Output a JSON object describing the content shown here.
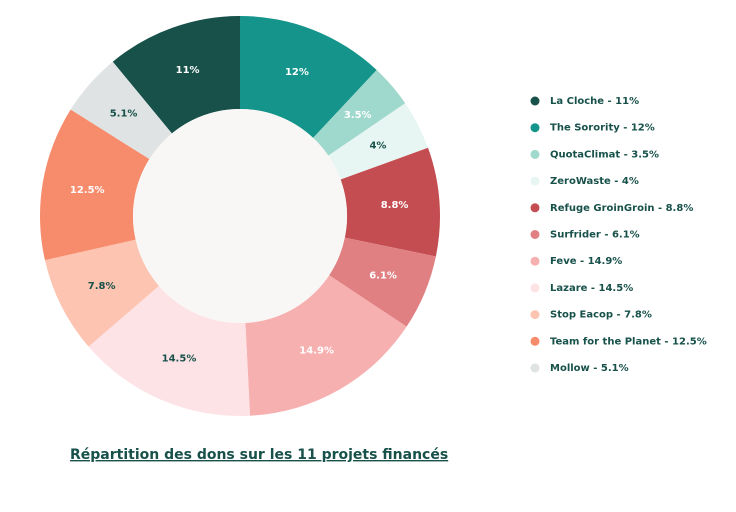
{
  "chart_data": {
    "type": "donut",
    "title": "Répartition des dons sur les 11 projets financés",
    "categories": [
      "La Cloche - 11%",
      "The Sorority - 12%",
      "QuotaClimat - 3.5%",
      "ZeroWaste - 4%",
      "Refuge GroinGroin - 8.8%",
      "Surfrider - 6.1%",
      "Feve - 14.9%",
      "Lazare - 14.5%",
      "Stop Eacop - 7.8%",
      "Team for the Planet - 12.5%",
      "Mollow - 5.1%"
    ],
    "values": [
      11,
      12,
      3.5,
      4,
      8.8,
      6.1,
      14.9,
      14.5,
      7.8,
      12.5,
      5.1
    ],
    "value_labels": [
      "11%",
      "12%",
      "3.5%",
      "4%",
      "8.8%",
      "6.1%",
      "14.9%",
      "14.5%",
      "7.8%",
      "12.5%",
      "5.1%"
    ],
    "colors": [
      "#17514a",
      "#14948a",
      "#9fd8cc",
      "#e8f6f3",
      "#c44d51",
      "#e08083",
      "#f7b0b0",
      "#fde3e6",
      "#fcc4b1",
      "#f78c6c",
      "#dfe3e3"
    ]
  }
}
